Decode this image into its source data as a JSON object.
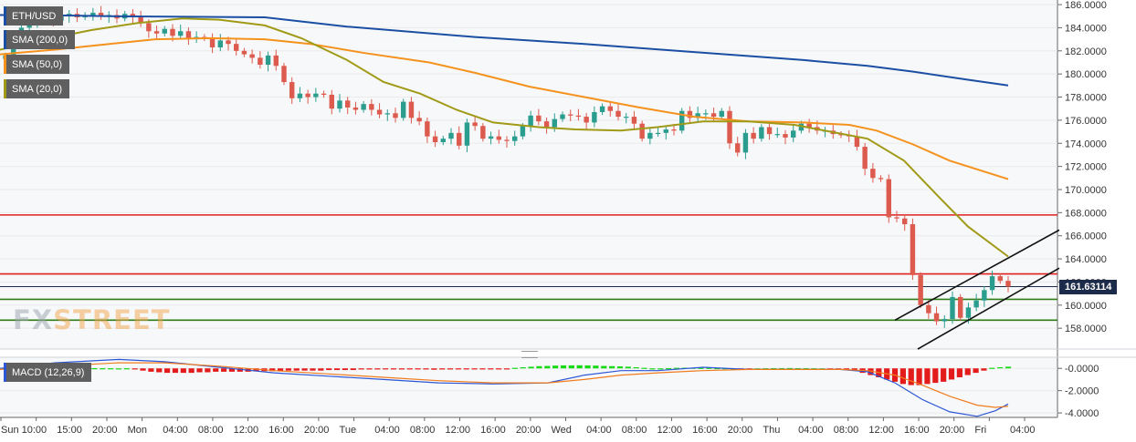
{
  "chart_data": [
    {
      "type": "candlestick",
      "title": "ETH/USD",
      "timeframe_labels": [
        "Sun",
        "10:00",
        "15:00",
        "20:00",
        "Mon",
        "04:00",
        "08:00",
        "12:00",
        "16:00",
        "20:00",
        "Tue",
        "04:00",
        "08:00",
        "12:00",
        "16:00",
        "20:00",
        "Wed",
        "04:00",
        "08:00",
        "12:00",
        "16:00",
        "20:00",
        "Thu",
        "04:00",
        "08:00",
        "12:00",
        "16:00",
        "20:00",
        "Fri",
        "04:00"
      ],
      "y_ticks": [
        "186.0000",
        "184.0000",
        "182.0000",
        "180.0000",
        "178.0000",
        "176.0000",
        "174.0000",
        "172.0000",
        "170.0000",
        "168.0000",
        "166.0000",
        "164.0000",
        "162.0000",
        "160.0000",
        "158.0000"
      ],
      "ylim": [
        156.2,
        186.4
      ],
      "current_price": "161.63114",
      "closes": [
        181.6,
        183.2,
        184.0,
        184.4,
        184.8,
        185.3,
        184.6,
        185.0,
        185.2,
        184.9,
        185.1,
        185.3,
        185.0,
        185.1,
        184.8,
        185.2,
        184.9,
        184.4,
        183.7,
        183.5,
        183.9,
        183.3,
        183.7,
        183.1,
        183.2,
        183.1,
        182.3,
        182.9,
        182.6,
        182.0,
        181.7,
        181.4,
        180.8,
        181.6,
        180.7,
        179.3,
        177.9,
        178.3,
        178.0,
        178.3,
        178.2,
        177.0,
        177.7,
        177.1,
        176.9,
        177.4,
        176.9,
        176.5,
        176.6,
        176.2,
        177.6,
        176.2,
        175.9,
        174.6,
        174.1,
        174.4,
        174.9,
        173.8,
        175.8,
        175.5,
        174.4,
        174.6,
        174.3,
        174.2,
        174.6,
        175.5,
        176.4,
        175.9,
        175.4,
        176.1,
        176.5,
        176.4,
        176.3,
        175.8,
        176.7,
        177.2,
        176.8,
        176.3,
        176.3,
        175.7,
        174.4,
        174.9,
        174.9,
        175.2,
        175.1,
        176.8,
        176.2,
        176.6,
        176.6,
        176.3,
        176.8,
        174.0,
        173.2,
        174.9,
        174.4,
        175.4,
        174.8,
        174.8,
        174.5,
        175.1,
        175.7,
        175.4,
        175.1,
        175.1,
        174.8,
        174.7,
        174.6,
        173.7,
        171.8,
        171.0,
        170.9,
        167.6,
        167.5,
        167.0,
        162.6,
        160.0,
        159.3,
        158.6,
        158.8,
        160.7,
        158.9,
        159.8,
        160.4,
        161.3,
        162.5,
        162.1,
        161.6
      ],
      "series": [
        {
          "name": "SMA (200,0)",
          "color": "#1b4fa3",
          "points": [
            [
              0,
              185.1
            ],
            [
              40,
              185.1
            ],
            [
              120,
              185.0
            ],
            [
              290,
              184.9
            ],
            [
              380,
              184.1
            ],
            [
              520,
              183.2
            ],
            [
              640,
              182.6
            ],
            [
              760,
              181.9
            ],
            [
              880,
              181.2
            ],
            [
              950,
              180.7
            ],
            [
              1000,
              180.2
            ],
            [
              1060,
              179.5
            ],
            [
              1104,
              179.0
            ]
          ]
        },
        {
          "name": "SMA (50,0)",
          "color": "#f5921e",
          "points": [
            [
              0,
              181.7
            ],
            [
              60,
              182.1
            ],
            [
              120,
              182.6
            ],
            [
              170,
              183.0
            ],
            [
              230,
              183.1
            ],
            [
              290,
              183.0
            ],
            [
              340,
              182.6
            ],
            [
              400,
              181.8
            ],
            [
              470,
              181.0
            ],
            [
              520,
              180.1
            ],
            [
              580,
              178.9
            ],
            [
              640,
              178.0
            ],
            [
              700,
              177.1
            ],
            [
              760,
              176.3
            ],
            [
              820,
              175.9
            ],
            [
              880,
              175.8
            ],
            [
              930,
              175.6
            ],
            [
              960,
              175.1
            ],
            [
              1000,
              173.9
            ],
            [
              1040,
              172.5
            ],
            [
              1104,
              170.9
            ]
          ]
        },
        {
          "name": "SMA (20,0)",
          "color": "#a09a17",
          "points": [
            [
              0,
              182.1
            ],
            [
              50,
              183.0
            ],
            [
              100,
              183.8
            ],
            [
              150,
              184.4
            ],
            [
              200,
              184.8
            ],
            [
              240,
              184.7
            ],
            [
              290,
              184.2
            ],
            [
              330,
              183.1
            ],
            [
              380,
              181.2
            ],
            [
              420,
              179.3
            ],
            [
              460,
              178.3
            ],
            [
              500,
              176.9
            ],
            [
              540,
              175.8
            ],
            [
              590,
              175.4
            ],
            [
              630,
              175.2
            ],
            [
              680,
              175.1
            ],
            [
              720,
              175.4
            ],
            [
              770,
              175.9
            ],
            [
              820,
              175.9
            ],
            [
              870,
              175.6
            ],
            [
              910,
              175.0
            ],
            [
              950,
              174.4
            ],
            [
              990,
              172.5
            ],
            [
              1030,
              169.2
            ],
            [
              1060,
              166.8
            ],
            [
              1104,
              164.2
            ]
          ]
        }
      ],
      "horizontal_levels": [
        {
          "y": 167.8,
          "color": "#e02020"
        },
        {
          "y": 162.7,
          "color": "#e02020"
        },
        {
          "y": 161.6,
          "color": "#1c2b4a"
        },
        {
          "y": 160.5,
          "color": "#2e7d17"
        },
        {
          "y": 158.7,
          "color": "#2e7d17"
        }
      ],
      "channel_lines": [
        {
          "from": [
            980,
            158.7
          ],
          "to": [
            1160,
            166.5
          ]
        },
        {
          "from": [
            1005,
            156.2
          ],
          "to": [
            1160,
            163.2
          ]
        }
      ],
      "colors": {
        "up": "#2a9d8f",
        "down": "#dc5a4e",
        "grid": "#eaeaea"
      }
    },
    {
      "type": "histogram+line",
      "title": "MACD (12,26,9)",
      "y_ticks": [
        "-0.0000",
        "-2.0000",
        "-4.0000"
      ],
      "ylim": [
        -4.4,
        1.0
      ],
      "histogram": [
        0.02,
        0.03,
        0.02,
        0.03,
        0.02,
        0.02,
        0.02,
        0.03,
        0.02,
        0.02,
        0.01,
        0.02,
        0.01,
        0.01,
        0.0,
        0.01,
        -0.05,
        -0.2,
        -0.3,
        -0.35,
        -0.4,
        -0.4,
        -0.4,
        -0.4,
        -0.35,
        -0.35,
        -0.3,
        -0.3,
        -0.3,
        -0.3,
        -0.3,
        -0.25,
        -0.25,
        -0.25,
        -0.25,
        -0.2,
        -0.2,
        -0.2,
        -0.2,
        -0.2,
        -0.15,
        -0.15,
        -0.15,
        -0.15,
        -0.1,
        -0.1,
        -0.1,
        -0.08,
        -0.1,
        -0.1,
        -0.08,
        -0.08,
        -0.1,
        -0.12,
        -0.1,
        -0.1,
        -0.08,
        -0.05,
        -0.06,
        -0.05,
        -0.03,
        -0.02,
        -0.01,
        0.05,
        0.1,
        0.15,
        0.2,
        0.22,
        0.25,
        0.27,
        0.27,
        0.28,
        0.27,
        0.25,
        0.22,
        0.2,
        0.18,
        0.15,
        0.1,
        0.05,
        0.0,
        0.0,
        0.02,
        0.05,
        0.06,
        0.06,
        0.05,
        0.05,
        0.03,
        0.02,
        0.0,
        -0.02,
        -0.02,
        0.0,
        0.01,
        0.02,
        0.02,
        0.03,
        0.02,
        0.02,
        0.01,
        0.0,
        -0.02,
        -0.05,
        -0.1,
        -0.2,
        -0.4,
        -0.6,
        -0.8,
        -1.0,
        -1.2,
        -1.4,
        -1.5,
        -1.5,
        -1.4,
        -1.3,
        -1.2,
        -1.0,
        -0.8,
        -0.6,
        -0.4,
        -0.2,
        0.05,
        0.1,
        0.15
      ],
      "series": [
        {
          "name": "MACD",
          "color": "#2c56d6",
          "points": [
            [
              0,
              0.0
            ],
            [
              60,
              0.5
            ],
            [
              130,
              0.8
            ],
            [
              180,
              0.6
            ],
            [
              240,
              0.1
            ],
            [
              300,
              -0.4
            ],
            [
              360,
              -0.7
            ],
            [
              420,
              -1.0
            ],
            [
              480,
              -1.3
            ],
            [
              540,
              -1.4
            ],
            [
              600,
              -1.3
            ],
            [
              640,
              -0.6
            ],
            [
              680,
              -0.2
            ],
            [
              720,
              -0.2
            ],
            [
              770,
              0.1
            ],
            [
              820,
              -0.1
            ],
            [
              880,
              -0.1
            ],
            [
              920,
              -0.1
            ],
            [
              950,
              -0.3
            ],
            [
              980,
              -1.3
            ],
            [
              1010,
              -2.8
            ],
            [
              1040,
              -3.9
            ],
            [
              1070,
              -4.3
            ],
            [
              1090,
              -3.8
            ],
            [
              1104,
              -3.2
            ]
          ]
        },
        {
          "name": "Signal",
          "color": "#f07c1e",
          "points": [
            [
              0,
              -0.1
            ],
            [
              60,
              0.2
            ],
            [
              130,
              0.5
            ],
            [
              180,
              0.5
            ],
            [
              240,
              0.2
            ],
            [
              300,
              -0.2
            ],
            [
              360,
              -0.5
            ],
            [
              420,
              -0.8
            ],
            [
              480,
              -1.1
            ],
            [
              540,
              -1.3
            ],
            [
              600,
              -1.3
            ],
            [
              640,
              -1.0
            ],
            [
              680,
              -0.6
            ],
            [
              720,
              -0.4
            ],
            [
              770,
              -0.2
            ],
            [
              820,
              -0.1
            ],
            [
              880,
              -0.1
            ],
            [
              920,
              -0.1
            ],
            [
              950,
              -0.2
            ],
            [
              980,
              -0.6
            ],
            [
              1010,
              -1.5
            ],
            [
              1040,
              -2.5
            ],
            [
              1070,
              -3.3
            ],
            [
              1090,
              -3.5
            ],
            [
              1104,
              -3.4
            ]
          ]
        }
      ]
    }
  ],
  "legend": {
    "pair": "ETH/USD",
    "sma200": "SMA (200,0)",
    "sma50": "SMA (50,0)",
    "sma20": "SMA (20,0)",
    "macd": "MACD (12,26,9)"
  },
  "watermark": {
    "fx": "FX",
    "street": "STREET"
  }
}
